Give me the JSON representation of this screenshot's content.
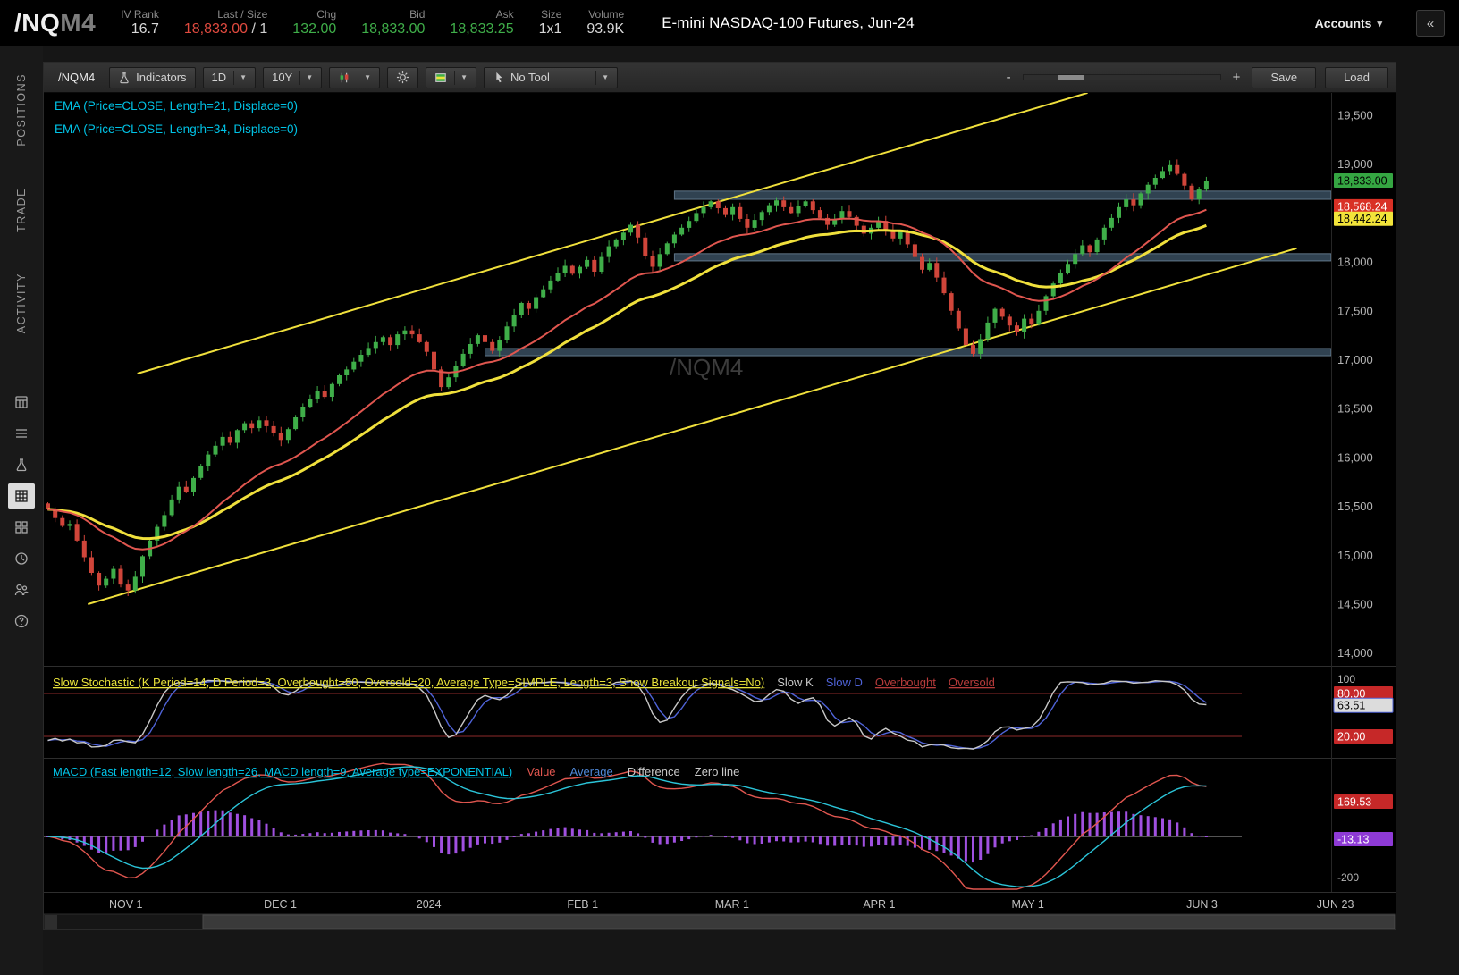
{
  "header": {
    "symbol": "/NQ",
    "symbol_month": "M4",
    "stats": [
      {
        "label": "IV Rank",
        "value": "16.7",
        "color": "#d8d8d8"
      },
      {
        "label": "Last / Size",
        "value": "18,833.00",
        "extra": " / 1",
        "color": "#e04a3f"
      },
      {
        "label": "Chg",
        "value": "132.00",
        "color": "#3fae49"
      },
      {
        "label": "Bid",
        "value": "18,833.00",
        "color": "#3fae49"
      },
      {
        "label": "Ask",
        "value": "18,833.25",
        "color": "#3fae49"
      },
      {
        "label": "Size",
        "value": "1x1",
        "color": "#d8d8d8"
      },
      {
        "label": "Volume",
        "value": "93.9K",
        "color": "#d8d8d8"
      }
    ],
    "instrument": "E-mini NASDAQ-100 Futures, Jun-24",
    "accounts": "Accounts",
    "collapse_glyph": "«"
  },
  "sidebar": {
    "tabs": [
      {
        "label": "POSITIONS"
      },
      {
        "label": "TRADE"
      },
      {
        "label": "ACTIVITY"
      }
    ],
    "icons": [
      "calculator",
      "list",
      "beaker",
      "chart-grid",
      "dashboard",
      "clock",
      "people",
      "help"
    ]
  },
  "toolbar": {
    "symbol": "/NQM4",
    "indicators": "Indicators",
    "timeframe": "1D",
    "range": "10Y",
    "no_tool": "No Tool",
    "zoom_minus": "-",
    "zoom_plus": "+",
    "save": "Save",
    "load": "Load"
  },
  "chart_data": {
    "type": "candlestick",
    "symbol": "/NQM4",
    "watermark": "/NQM4",
    "study_labels": {
      "ema21": "EMA (Price=CLOSE, Length=21, Displace=0)",
      "ema34": "EMA (Price=CLOSE, Length=34, Displace=0)"
    },
    "colors": {
      "up": "#3fae49",
      "down": "#d0453a",
      "ema21": "#e0564f",
      "ema34": "#f0e03c",
      "trend": "#f0e03c",
      "zone_fill": "rgba(96,131,162,0.5)",
      "zone_border": "rgba(150,180,205,0.55)",
      "label_ema": "#00c3e6",
      "label_stoch": "#e8e23a",
      "label_macd": "#00c3e6",
      "stoch_k": "#c8c8c8",
      "stoch_d": "#4f63d8",
      "ob_os": "#8e2a2a",
      "macd_value": "#e0564f",
      "macd_avg": "#2bc4d8",
      "macd_hist": "#a050e0",
      "axis_text": "#b4b4b4"
    },
    "price_axis": {
      "max": 19500,
      "min": 14000,
      "step": 500,
      "labels": [
        "19,500",
        "19,000",
        "18,500",
        "18,000",
        "17,500",
        "17,000",
        "16,500",
        "16,000",
        "15,500",
        "15,000",
        "14,500",
        "14,000"
      ]
    },
    "price_markers": [
      {
        "value": "18,833.00",
        "price": 18833,
        "bg": "#35a642",
        "fg": "#000000"
      },
      {
        "value": "18,568.24",
        "price": 18568.24,
        "bg": "#d93025",
        "fg": "#ffffff"
      },
      {
        "value": "18,442.24",
        "price": 18442.24,
        "bg": "#f2e43a",
        "fg": "#000000"
      }
    ],
    "time_axis": [
      {
        "label": "NOV 1",
        "index": 10.7
      },
      {
        "label": "DEC 1",
        "index": 31.9
      },
      {
        "label": "2024",
        "index": 52.3
      },
      {
        "label": "FEB 1",
        "index": 73.4
      },
      {
        "label": "MAR 1",
        "index": 93.9
      },
      {
        "label": "APR 1",
        "index": 114.1
      },
      {
        "label": "MAY 1",
        "index": 134.5
      },
      {
        "label": "JUN 3",
        "index": 158.4
      },
      {
        "label": "JUN 23",
        "index": 176.7
      }
    ],
    "closes": [
      15470,
      15380,
      15300,
      15320,
      15150,
      14980,
      14820,
      14690,
      14760,
      14860,
      14700,
      14640,
      14780,
      14990,
      15150,
      15290,
      15410,
      15570,
      15700,
      15650,
      15790,
      15910,
      16030,
      16120,
      16210,
      16150,
      16280,
      16350,
      16300,
      16380,
      16320,
      16250,
      16180,
      16290,
      16410,
      16520,
      16600,
      16680,
      16620,
      16750,
      16840,
      16900,
      16980,
      17050,
      17120,
      17180,
      17230,
      17150,
      17260,
      17300,
      17260,
      17180,
      17080,
      16900,
      16720,
      16820,
      16940,
      17060,
      17160,
      17250,
      17180,
      17090,
      17200,
      17340,
      17460,
      17580,
      17520,
      17640,
      17720,
      17810,
      17890,
      17960,
      17880,
      17950,
      18020,
      17900,
      18050,
      18160,
      18230,
      18300,
      18380,
      18250,
      18060,
      17950,
      18080,
      18190,
      18280,
      18350,
      18420,
      18500,
      18560,
      18620,
      18550,
      18480,
      18560,
      18440,
      18350,
      18430,
      18510,
      18580,
      18630,
      18560,
      18500,
      18570,
      18620,
      18530,
      18450,
      18380,
      18440,
      18520,
      18460,
      18370,
      18290,
      18350,
      18420,
      18330,
      18240,
      18310,
      18180,
      18050,
      17920,
      17990,
      17840,
      17680,
      17500,
      17320,
      17150,
      17060,
      17210,
      17380,
      17520,
      17440,
      17350,
      17280,
      17420,
      17360,
      17500,
      17650,
      17780,
      17890,
      17980,
      18080,
      18170,
      18100,
      18230,
      18350,
      18450,
      18560,
      18640,
      18580,
      18700,
      18790,
      18860,
      18930,
      18990,
      18900,
      18780,
      18640,
      18740,
      18833
    ],
    "trend_channel": {
      "upper": {
        "x1_index": 12.3,
        "price1": 16858,
        "x2_index": 142.7,
        "price2": 19729
      },
      "lower": {
        "x1_index": 5.5,
        "price1": 14500,
        "x2_index": 171.4,
        "price2": 18140
      }
    },
    "zones": [
      {
        "from": 18640,
        "to": 18725,
        "start_index": 86
      },
      {
        "from": 18010,
        "to": 18085,
        "start_index": 86
      },
      {
        "from": 17040,
        "to": 17115,
        "start_index": 60
      }
    ],
    "stochastic": {
      "title": "Slow Stochastic (K Period=14, D Period=3, Overbought=80, Oversold=20, Average Type=SIMPLE, Length=3, Show Breakout Signals=No)",
      "legend": [
        {
          "label": "Slow K",
          "color": "#c8c8c8"
        },
        {
          "label": "Slow D",
          "color": "#4f63d8"
        },
        {
          "label": "Overbought",
          "color": "#b73b3b",
          "underline": true
        },
        {
          "label": "Oversold",
          "color": "#b73b3b",
          "underline": true
        }
      ],
      "overbought": 80,
      "oversold": 20,
      "axis_top": "100",
      "current_k": 63.51,
      "markers": [
        {
          "value": "80.00",
          "bg": "#c62828",
          "fg": "#ffffff"
        },
        {
          "value": "63.51",
          "bg": "#dcdcdc",
          "fg": "#000000",
          "border": "#4f63d8"
        },
        {
          "value": "20.00",
          "bg": "#c62828",
          "fg": "#ffffff"
        }
      ]
    },
    "macd": {
      "title": "MACD (Fast length=12, Slow length=26, MACD length=9, Average type=EXPONENTIAL)",
      "legend": [
        {
          "label": "Value",
          "color": "#e0564f"
        },
        {
          "label": "Average",
          "color": "#4f88d8"
        },
        {
          "label": "Difference",
          "color": "#c8c8c8"
        },
        {
          "label": "Zero line",
          "color": "#c8c8c8"
        }
      ],
      "axis_bottom": "-200",
      "markers": [
        {
          "value": "169.53",
          "v": 169.53,
          "bg": "#c62828",
          "fg": "#ffffff"
        },
        {
          "value": "-13.13",
          "v": -13.13,
          "bg": "#8e3ad6",
          "fg": "#ffffff"
        }
      ]
    }
  }
}
